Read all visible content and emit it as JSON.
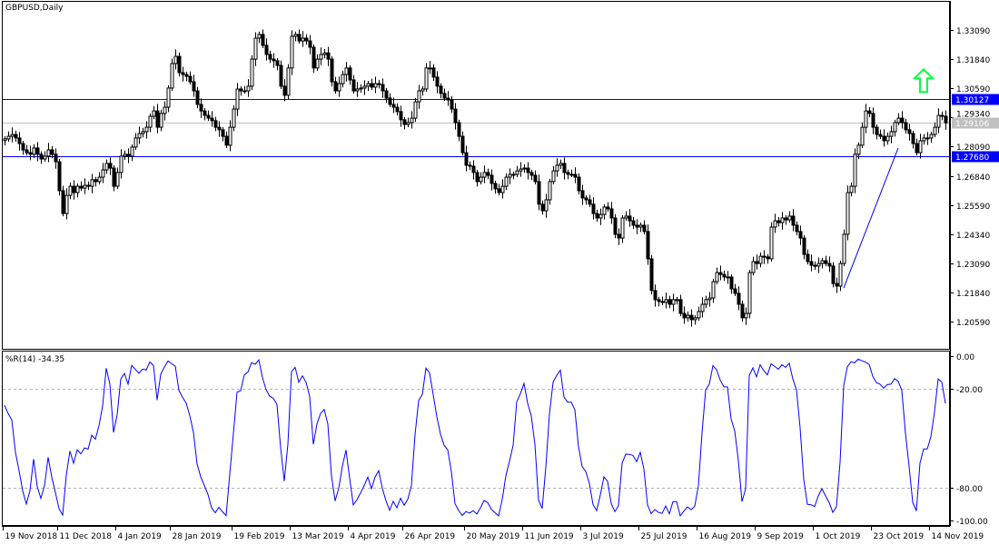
{
  "window": {
    "symbol_label": "GBPUSD,Daily"
  },
  "colors": {
    "bull_fill": "#ffffff",
    "bear_fill": "#000000",
    "candle_stroke": "#000000",
    "level_line": "#0000ff",
    "bid_line": "#c0c0c0",
    "indicator_line": "#0000ff",
    "arrow": "#00ff40",
    "trendline": "#0000ff"
  },
  "chart_data": [
    {
      "type": "candlestick",
      "title": "GBPUSD,Daily",
      "ylim": [
        1.196,
        1.338
      ],
      "y_ticks": [
        "1.33090",
        "1.31840",
        "1.30590",
        "1.29340",
        "1.28090",
        "1.26840",
        "1.25590",
        "1.24340",
        "1.23090",
        "1.21840",
        "1.20590"
      ],
      "x_ticks": [
        {
          "bar": 0,
          "label": "19 Nov 2018"
        },
        {
          "bar": 15,
          "label": "11 Dec 2018"
        },
        {
          "bar": 31,
          "label": "4 Jan 2019"
        },
        {
          "bar": 46,
          "label": "28 Jan 2019"
        },
        {
          "bar": 63,
          "label": "19 Feb 2019"
        },
        {
          "bar": 79,
          "label": "13 Mar 2019"
        },
        {
          "bar": 95,
          "label": "4 Apr 2019"
        },
        {
          "bar": 110,
          "label": "26 Apr 2019"
        },
        {
          "bar": 127,
          "label": "20 May 2019"
        },
        {
          "bar": 143,
          "label": "11 Jun 2019"
        },
        {
          "bar": 159,
          "label": "3 Jul 2019"
        },
        {
          "bar": 175,
          "label": "25 Jul 2019"
        },
        {
          "bar": 191,
          "label": "16 Aug 2019"
        },
        {
          "bar": 207,
          "label": "9 Sep 2019"
        },
        {
          "bar": 223,
          "label": "1 Oct 2019"
        },
        {
          "bar": 239,
          "label": "23 Oct 2019"
        },
        {
          "bar": 255,
          "label": "14 Nov 2019"
        }
      ],
      "closes": [
        1.2842,
        1.2853,
        1.2861,
        1.2846,
        1.2822,
        1.2795,
        1.2783,
        1.2776,
        1.2803,
        1.2776,
        1.2756,
        1.2768,
        1.2795,
        1.2776,
        1.2744,
        1.262,
        1.2522,
        1.26,
        1.2639,
        1.2612,
        1.2639,
        1.2631,
        1.2643,
        1.2639,
        1.2667,
        1.2659,
        1.2678,
        1.2709,
        1.2737,
        1.2717,
        1.2639,
        1.2698,
        1.2768,
        1.2776,
        1.2768,
        1.2807,
        1.2846,
        1.2865,
        1.2873,
        1.2892,
        1.2939,
        1.2962,
        1.2892,
        1.2951,
        1.2978,
        1.306,
        1.3165,
        1.3196,
        1.3126,
        1.3118,
        1.311,
        1.3087,
        1.3048,
        1.299,
        1.2962,
        1.2943,
        1.2931,
        1.292,
        1.2892,
        1.2881,
        1.2853,
        1.2815,
        1.2892,
        1.297,
        1.3056,
        1.3048,
        1.3048,
        1.3068,
        1.3184,
        1.3274,
        1.329,
        1.3243,
        1.3204,
        1.3184,
        1.3177,
        1.3157,
        1.3068,
        1.3029,
        1.3146,
        1.3282,
        1.329,
        1.3262,
        1.3274,
        1.3262,
        1.3235,
        1.3146,
        1.3184,
        1.3204,
        1.3211,
        1.3184,
        1.3087,
        1.3048,
        1.3079,
        1.3118,
        1.3146,
        1.3095,
        1.3048,
        1.3056,
        1.306,
        1.3068,
        1.3079,
        1.3064,
        1.3079,
        1.3075,
        1.3048,
        1.3017,
        1.299,
        1.2978,
        1.2959,
        1.2924,
        1.2904,
        1.2912,
        1.2931,
        1.3001,
        1.3048,
        1.3056,
        1.3146,
        1.3146,
        1.3107,
        1.3068,
        1.3037,
        1.3017,
        1.3009,
        1.297,
        1.2912,
        1.2853,
        1.2783,
        1.2729,
        1.2725,
        1.2698,
        1.2659,
        1.2678,
        1.2698,
        1.2686,
        1.2651,
        1.2628,
        1.2612,
        1.2639,
        1.2678,
        1.269,
        1.269,
        1.2705,
        1.2713,
        1.2717,
        1.2698,
        1.2686,
        1.2659,
        1.2562,
        1.2534,
        1.2581,
        1.2659,
        1.2705,
        1.2729,
        1.2737,
        1.2698,
        1.269,
        1.269,
        1.2678,
        1.262,
        1.2589,
        1.2581,
        1.2562,
        1.2522,
        1.2503,
        1.2518,
        1.255,
        1.2542,
        1.2503,
        1.2433,
        1.2417,
        1.2503,
        1.2511,
        1.2491,
        1.2472,
        1.2464,
        1.2472,
        1.2445,
        1.2328,
        1.2192,
        1.2153,
        1.2145,
        1.2141,
        1.2153,
        1.2133,
        1.2153,
        1.2153,
        1.2094,
        1.2075,
        1.2086,
        1.2067,
        1.2075,
        1.2102,
        1.2133,
        1.2153,
        1.216,
        1.223,
        1.2269,
        1.2261,
        1.225,
        1.225,
        1.2199,
        1.218,
        1.2133,
        1.2075,
        1.2094,
        1.2269,
        1.2316,
        1.2308,
        1.2339,
        1.2336,
        1.2328,
        1.2464,
        1.2491,
        1.2483,
        1.2503,
        1.2495,
        1.2511,
        1.2472,
        1.2445,
        1.2417,
        1.2347,
        1.2316,
        1.23,
        1.2297,
        1.2308,
        1.232,
        1.2308,
        1.2297,
        1.2222,
        1.2211,
        1.2308,
        1.2433,
        1.2612,
        1.2639,
        1.2776,
        1.2815,
        1.2892,
        1.2962,
        1.2951,
        1.2892,
        1.2861,
        1.2853,
        1.2834,
        1.2853,
        1.2873,
        1.2912,
        1.2931,
        1.2912,
        1.2881,
        1.2865,
        1.2822,
        1.2783,
        1.2834,
        1.2846,
        1.2846,
        1.2861,
        1.2892,
        1.2943,
        1.2939,
        1.2911
      ],
      "horizontal_levels": [
        {
          "price": 1.30127,
          "label": "1.30127"
        },
        {
          "price": 1.2768,
          "label": "1.27680"
        }
      ],
      "bid": {
        "price": 1.29106,
        "label": "1.29106"
      },
      "trendline": {
        "start": {
          "bar": 231,
          "price": 1.2203
        },
        "end": {
          "bar": 246,
          "price": 1.2803
        }
      },
      "arrow": {
        "bar": 253,
        "price": 1.309,
        "icon": "arrow-up-icon"
      }
    },
    {
      "type": "line",
      "title": "%R(14) -34.35",
      "indicator": "Williams %R",
      "period": 14,
      "current_value": -34.35,
      "ylim": [
        -100,
        0
      ],
      "y_ticks": [
        "0.00",
        "-20.00",
        "-80.00",
        "-100.00"
      ],
      "levels": [
        -20,
        -80
      ]
    }
  ]
}
